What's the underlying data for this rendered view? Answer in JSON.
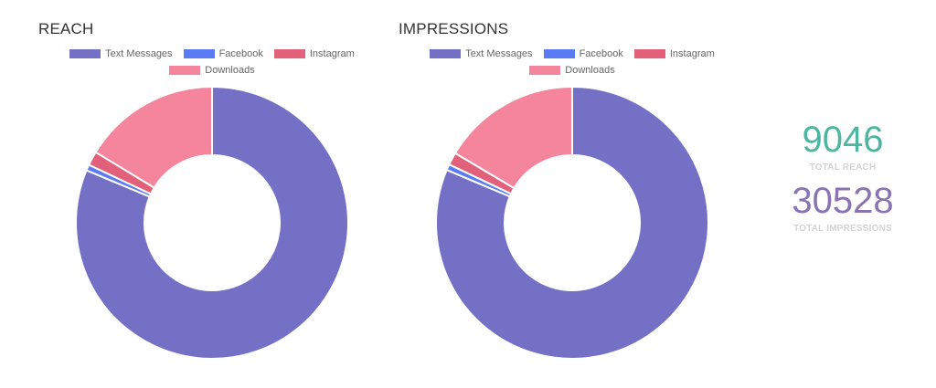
{
  "chart_data": [
    {
      "type": "pie",
      "title": "REACH",
      "categories": [
        "Text Messages",
        "Facebook",
        "Instagram",
        "Downloads"
      ],
      "values": [
        7355,
        63,
        152,
        1476
      ],
      "colors": [
        "#7370c6",
        "#5b7bf5",
        "#e2607a",
        "#f5849d"
      ],
      "legend": "top"
    },
    {
      "type": "pie",
      "title": "IMPRESSIONS",
      "categories": [
        "Text Messages",
        "Facebook",
        "Instagram",
        "Downloads"
      ],
      "values": [
        24835,
        214,
        458,
        5021
      ],
      "colors": [
        "#7370c6",
        "#5b7bf5",
        "#e2607a",
        "#f5849d"
      ],
      "legend": "top"
    }
  ],
  "summary": {
    "total_reach_value": "9046",
    "total_reach_label": "TOTAL REACH",
    "total_impressions_value": "30528",
    "total_impressions_label": "TOTAL IMPRESSIONS",
    "reach_color": "#4db6a0",
    "impressions_color": "#8a73b3"
  }
}
